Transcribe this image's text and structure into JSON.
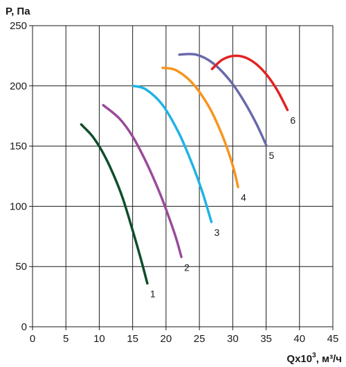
{
  "chart_data": {
    "type": "line",
    "ylabel": "P, Па",
    "xlabel_prefix": "Qx10",
    "xlabel_exp": "3",
    "xlabel_unit": ", м³/ч",
    "xlim": [
      0,
      45
    ],
    "ylim": [
      0,
      250
    ],
    "xticks": [
      0,
      5,
      10,
      15,
      20,
      25,
      30,
      35,
      40,
      45
    ],
    "yticks": [
      0,
      50,
      100,
      150,
      200,
      250
    ],
    "grid": true,
    "series": [
      {
        "name": "1",
        "color": "#0f4d2a",
        "x": [
          7.3,
          9.0,
          10.5,
          12.0,
          13.5,
          15.0,
          16.2,
          17.2
        ],
        "y": [
          168,
          158,
          145,
          128,
          107,
          80,
          57,
          36
        ]
      },
      {
        "name": "2",
        "color": "#9a4a9b",
        "x": [
          10.6,
          13.0,
          15.0,
          17.0,
          19.0,
          20.5,
          21.6,
          22.3
        ],
        "y": [
          184,
          173,
          158,
          137,
          112,
          90,
          72,
          58
        ]
      },
      {
        "name": "3",
        "color": "#1eb3e6",
        "x": [
          15.1,
          17.0,
          19.5,
          22.0,
          24.0,
          25.5,
          26.8
        ],
        "y": [
          200,
          197,
          184,
          160,
          134,
          111,
          87
        ]
      },
      {
        "name": "4",
        "color": "#f7941d",
        "x": [
          19.5,
          21.5,
          24.0,
          26.5,
          28.5,
          30.0,
          30.8
        ],
        "y": [
          215,
          213,
          202,
          182,
          158,
          134,
          116
        ]
      },
      {
        "name": "5",
        "color": "#6a69ab",
        "x": [
          22.0,
          24.5,
          27.0,
          29.5,
          31.5,
          33.5,
          35.0
        ],
        "y": [
          226,
          226,
          219,
          205,
          189,
          169,
          151
        ]
      },
      {
        "name": "6",
        "color": "#e32122",
        "x": [
          26.9,
          28.5,
          30.5,
          32.5,
          34.5,
          36.5,
          38.2
        ],
        "y": [
          214,
          222,
          225,
          222,
          213,
          198,
          180
        ]
      }
    ],
    "labels": [
      {
        "text": "1",
        "series": "1"
      },
      {
        "text": "2",
        "series": "2"
      },
      {
        "text": "3",
        "series": "3"
      },
      {
        "text": "4",
        "series": "4"
      },
      {
        "text": "5",
        "series": "5"
      },
      {
        "text": "6",
        "series": "6"
      }
    ]
  }
}
